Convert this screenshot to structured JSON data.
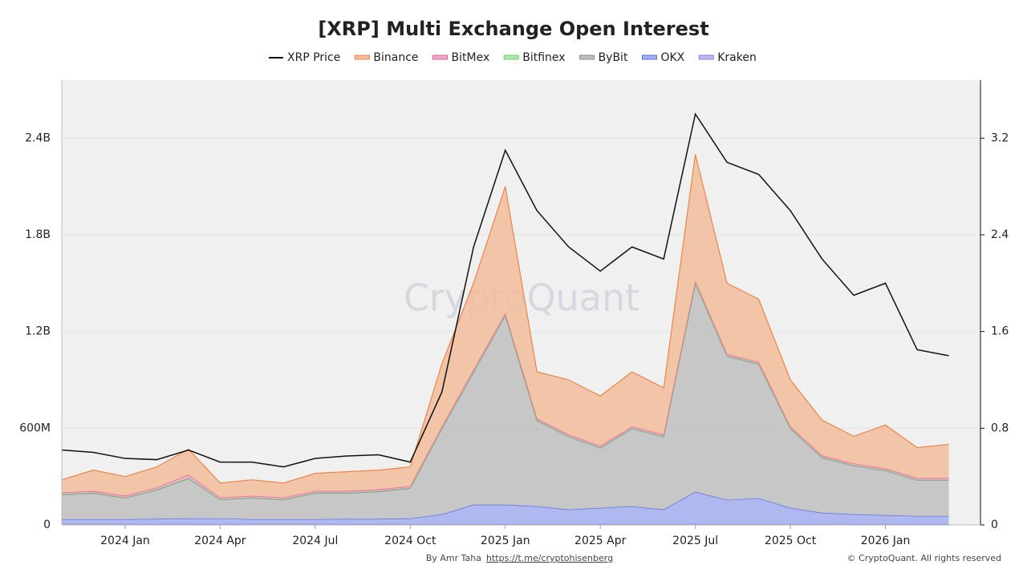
{
  "chart_data": {
    "type": "stacked-area",
    "title": "[XRP] Multi Exchange Open Interest",
    "watermark": "CryptoQuant",
    "credit": "By Amr Taha",
    "credit_link": "https://t.me/cryptohisenberg",
    "copyright": "© CryptoQuant. All rights reserved",
    "x": [
      "2023-11",
      "2023-12",
      "2024-01",
      "2024-02",
      "2024-03",
      "2024-04",
      "2024-05",
      "2024-06",
      "2024-07",
      "2024-08",
      "2024-09",
      "2024-10",
      "2024-11",
      "2024-12",
      "2025-01",
      "2025-02",
      "2025-03",
      "2025-04",
      "2025-05",
      "2025-06",
      "2025-07",
      "2025-08",
      "2025-09",
      "2025-10",
      "2025-11",
      "2025-12",
      "2026-01",
      "2026-02",
      "2026-03"
    ],
    "xlim": [
      "2023-11",
      "2026-04"
    ],
    "xticks": [
      {
        "value": "2024-01",
        "label": "2024 Jan"
      },
      {
        "value": "2024-04",
        "label": "2024 Apr"
      },
      {
        "value": "2024-07",
        "label": "2024 Jul"
      },
      {
        "value": "2024-10",
        "label": "2024 Oct"
      },
      {
        "value": "2025-01",
        "label": "2025 Jan"
      },
      {
        "value": "2025-04",
        "label": "2025 Apr"
      },
      {
        "value": "2025-07",
        "label": "2025 Jul"
      },
      {
        "value": "2025-10",
        "label": "2025 Oct"
      },
      {
        "value": "2026-01",
        "label": "2026 Jan"
      }
    ],
    "ylim": [
      0,
      2760000000
    ],
    "yticks": [
      0,
      {
        "value": 600000000,
        "label": "600M"
      },
      {
        "value": 1200000000,
        "label": "1.2B"
      },
      {
        "value": 1800000000,
        "label": "1.8B"
      },
      {
        "value": 2400000000,
        "label": "2.4B"
      }
    ],
    "y2lim": [
      0,
      3.68
    ],
    "y2ticks": [
      0,
      0.8,
      1.6,
      2.4,
      3.2
    ],
    "grid": true,
    "series": [
      {
        "name": "XRP Price",
        "color": "#111111",
        "axis": "y2",
        "values": [
          0.62,
          0.6,
          0.55,
          0.54,
          0.62,
          0.52,
          0.52,
          0.48,
          0.55,
          0.57,
          0.58,
          0.52,
          1.1,
          2.3,
          3.1,
          2.6,
          2.3,
          2.1,
          2.3,
          2.2,
          3.4,
          3.0,
          2.9,
          2.6,
          2.2,
          1.9,
          2.0,
          1.45,
          1.4
        ]
      },
      {
        "name": "Binance",
        "color": "#e8864a",
        "values": [
          80000000,
          130000000,
          120000000,
          128000000,
          160000000,
          90000000,
          100000000,
          90000000,
          110000000,
          120000000,
          120000000,
          120000000,
          390000000,
          538000000,
          788000000,
          290000000,
          340000000,
          310000000,
          340000000,
          290000000,
          788000000,
          440000000,
          390000000,
          290000000,
          220000000,
          170000000,
          270000000,
          190000000,
          210000000
        ]
      },
      {
        "name": "BitMex",
        "color": "#e0609a",
        "values": [
          10000000,
          10000000,
          10000000,
          12000000,
          20000000,
          10000000,
          10000000,
          10000000,
          10000000,
          10000000,
          10000000,
          10000000,
          10000000,
          12000000,
          12000000,
          10000000,
          10000000,
          10000000,
          10000000,
          10000000,
          12000000,
          10000000,
          10000000,
          10000000,
          10000000,
          10000000,
          10000000,
          10000000,
          10000000
        ]
      },
      {
        "name": "Bitfinex",
        "color": "#6fcf6f",
        "values": [
          3000000,
          3000000,
          3000000,
          3000000,
          3000000,
          3000000,
          3000000,
          3000000,
          3000000,
          3000000,
          3000000,
          3000000,
          3000000,
          3000000,
          3000000,
          3000000,
          3000000,
          3000000,
          3000000,
          3000000,
          3000000,
          3000000,
          3000000,
          3000000,
          3000000,
          3000000,
          3000000,
          3000000,
          3000000
        ]
      },
      {
        "name": "ByBit",
        "color": "#8a8a8e",
        "values": [
          152000000,
          162000000,
          132000000,
          180000000,
          247000000,
          117000000,
          132000000,
          122000000,
          162000000,
          160000000,
          170000000,
          187000000,
          532000000,
          822000000,
          1172000000,
          532000000,
          452000000,
          372000000,
          482000000,
          452000000,
          1292000000,
          892000000,
          832000000,
          492000000,
          342000000,
          302000000,
          277000000,
          222000000,
          222000000
        ]
      },
      {
        "name": "OKX",
        "color": "#5b6ee1",
        "values": [
          30000000,
          30000000,
          30000000,
          32000000,
          35000000,
          35000000,
          30000000,
          30000000,
          30000000,
          32000000,
          32000000,
          35000000,
          60000000,
          120000000,
          120000000,
          110000000,
          90000000,
          100000000,
          110000000,
          90000000,
          200000000,
          150000000,
          160000000,
          100000000,
          70000000,
          60000000,
          55000000,
          50000000,
          50000000
        ]
      },
      {
        "name": "Kraken",
        "color": "#8a7fe0",
        "values": [
          5000000,
          5000000,
          5000000,
          5000000,
          5000000,
          5000000,
          5000000,
          5000000,
          5000000,
          5000000,
          5000000,
          5000000,
          5000000,
          5000000,
          5000000,
          5000000,
          5000000,
          5000000,
          5000000,
          5000000,
          5000000,
          5000000,
          5000000,
          5000000,
          5000000,
          5000000,
          5000000,
          5000000,
          5000000
        ]
      }
    ]
  }
}
